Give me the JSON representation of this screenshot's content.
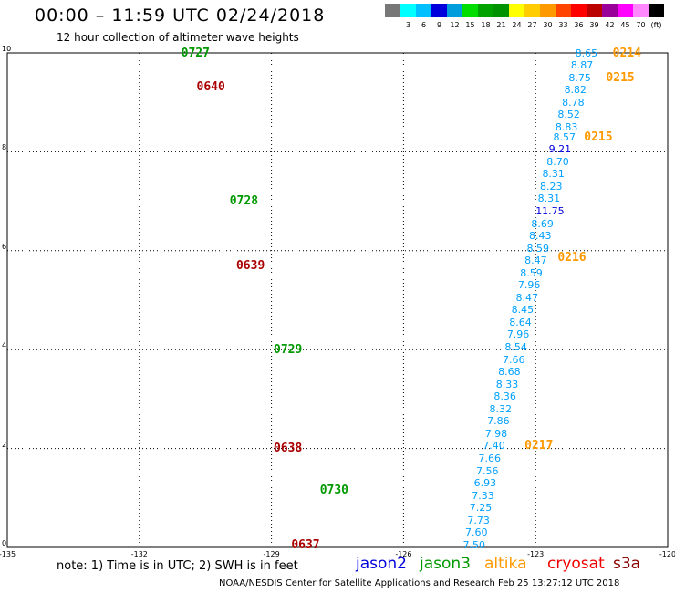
{
  "header": {
    "title": "00:00 – 11:59 UTC 02/24/2018",
    "subtitle": "12 hour collection of altimeter wave heights"
  },
  "legend": {
    "colors": [
      "#777777",
      "#00ffff",
      "#00c0ff",
      "#0000dd",
      "#009ddd",
      "#00dd00",
      "#00a200",
      "#009200",
      "#ffff00",
      "#ffcc00",
      "#ff9900",
      "#ff4400",
      "#ff0000",
      "#bb0000",
      "#990099",
      "#ff00ff",
      "#ff88ff",
      "#000000"
    ],
    "labels": [
      "3",
      "6",
      "9",
      "12",
      "15",
      "18",
      "21",
      "24",
      "27",
      "30",
      "33",
      "36",
      "39",
      "42",
      "45",
      "70",
      "(ft)"
    ]
  },
  "axes": {
    "x_ticks": [
      "-135",
      "-132",
      "-129",
      "-126",
      "-123",
      "-120"
    ],
    "x_values": [
      -135,
      -132,
      -129,
      -126,
      -123,
      -120
    ],
    "y_ticks": [
      "0",
      "2",
      "4",
      "6",
      "8",
      "10"
    ],
    "y_values": [
      0,
      2,
      4,
      6,
      8,
      10
    ],
    "grid": "dotted"
  },
  "map_data": {
    "type": "track-map",
    "tracks": [
      {
        "id": "right",
        "observations": [
          {
            "lon": -122.1,
            "lat": 9.99,
            "value": "8.65",
            "color": "#00a0ff"
          },
          {
            "lon": -122.2,
            "lat": 9.74,
            "value": "8.87",
            "color": "#00a0ff"
          },
          {
            "lon": -122.25,
            "lat": 9.49,
            "value": "8.75",
            "color": "#00a0ff"
          },
          {
            "lon": -122.35,
            "lat": 9.24,
            "value": "8.82",
            "color": "#00a0ff"
          },
          {
            "lon": -122.4,
            "lat": 8.99,
            "value": "8.78",
            "color": "#00a0ff"
          },
          {
            "lon": -122.5,
            "lat": 8.74,
            "value": "8.52",
            "color": "#00a0ff"
          },
          {
            "lon": -122.55,
            "lat": 8.49,
            "value": "8.83",
            "color": "#00a0ff"
          },
          {
            "lon": -122.6,
            "lat": 8.29,
            "value": "8.57",
            "color": "#00a0ff"
          },
          {
            "lon": -122.7,
            "lat": 8.04,
            "value": "9.21",
            "color": "#0000dd"
          },
          {
            "lon": -122.75,
            "lat": 7.79,
            "value": "8.70",
            "color": "#00a0ff"
          },
          {
            "lon": -122.85,
            "lat": 7.54,
            "value": "8.31",
            "color": "#00a0ff"
          },
          {
            "lon": -122.9,
            "lat": 7.29,
            "value": "8.23",
            "color": "#00a0ff"
          },
          {
            "lon": -122.95,
            "lat": 7.04,
            "value": "8.31",
            "color": "#00a0ff"
          },
          {
            "lon": -123.0,
            "lat": 6.79,
            "value": "11.75",
            "color": "#0000dd"
          },
          {
            "lon": -123.1,
            "lat": 6.54,
            "value": "8.69",
            "color": "#00a0ff"
          },
          {
            "lon": -123.15,
            "lat": 6.29,
            "value": "8.43",
            "color": "#00a0ff"
          },
          {
            "lon": -123.2,
            "lat": 6.04,
            "value": "8.59",
            "color": "#00a0ff"
          },
          {
            "lon": -123.25,
            "lat": 5.79,
            "value": "8.47",
            "color": "#00a0ff"
          },
          {
            "lon": -123.35,
            "lat": 5.54,
            "value": "8.59",
            "color": "#00a0ff"
          },
          {
            "lon": -123.4,
            "lat": 5.29,
            "value": "7.96",
            "color": "#00a0ff"
          },
          {
            "lon": -123.45,
            "lat": 5.04,
            "value": "8.47",
            "color": "#00a0ff"
          },
          {
            "lon": -123.55,
            "lat": 4.79,
            "value": "8.45",
            "color": "#00a0ff"
          },
          {
            "lon": -123.6,
            "lat": 4.54,
            "value": "8.64",
            "color": "#00a0ff"
          },
          {
            "lon": -123.65,
            "lat": 4.29,
            "value": "7.96",
            "color": "#00a0ff"
          },
          {
            "lon": -123.7,
            "lat": 4.04,
            "value": "8.54",
            "color": "#00a0ff"
          },
          {
            "lon": -123.75,
            "lat": 3.79,
            "value": "7.66",
            "color": "#00a0ff"
          },
          {
            "lon": -123.85,
            "lat": 3.54,
            "value": "8.68",
            "color": "#00a0ff"
          },
          {
            "lon": -123.9,
            "lat": 3.29,
            "value": "8.33",
            "color": "#00a0ff"
          },
          {
            "lon": -123.95,
            "lat": 3.04,
            "value": "8.36",
            "color": "#00a0ff"
          },
          {
            "lon": -124.05,
            "lat": 2.79,
            "value": "8.32",
            "color": "#00a0ff"
          },
          {
            "lon": -124.1,
            "lat": 2.54,
            "value": "7.86",
            "color": "#00a0ff"
          },
          {
            "lon": -124.15,
            "lat": 2.29,
            "value": "7.98",
            "color": "#00a0ff"
          },
          {
            "lon": -124.2,
            "lat": 2.04,
            "value": "7.40",
            "color": "#00a0ff"
          },
          {
            "lon": -124.3,
            "lat": 1.79,
            "value": "7.66",
            "color": "#00a0ff"
          },
          {
            "lon": -124.35,
            "lat": 1.54,
            "value": "7.56",
            "color": "#00a0ff"
          },
          {
            "lon": -124.4,
            "lat": 1.29,
            "value": "6.93",
            "color": "#00a0ff"
          },
          {
            "lon": -124.45,
            "lat": 1.04,
            "value": "7.33",
            "color": "#00a0ff"
          },
          {
            "lon": -124.5,
            "lat": 0.79,
            "value": "7.25",
            "color": "#00a0ff"
          },
          {
            "lon": -124.55,
            "lat": 0.54,
            "value": "7.73",
            "color": "#00a0ff"
          },
          {
            "lon": -124.6,
            "lat": 0.29,
            "value": "7.60",
            "color": "#00a0ff"
          },
          {
            "lon": -124.65,
            "lat": 0.04,
            "value": "7.50",
            "color": "#00a0ff"
          }
        ]
      }
    ],
    "pass_labels": [
      {
        "text": "0727",
        "lon": -131.05,
        "lat": 9.99,
        "color": "#009900"
      },
      {
        "text": "0640",
        "lon": -130.7,
        "lat": 9.29,
        "color": "#aa0000"
      },
      {
        "text": "0728",
        "lon": -129.95,
        "lat": 6.99,
        "color": "#009900"
      },
      {
        "text": "0639",
        "lon": -129.8,
        "lat": 5.69,
        "color": "#aa0000"
      },
      {
        "text": "0729",
        "lon": -128.95,
        "lat": 3.99,
        "color": "#009900"
      },
      {
        "text": "0638",
        "lon": -128.95,
        "lat": 1.99,
        "color": "#aa0000"
      },
      {
        "text": "0730",
        "lon": -127.9,
        "lat": 1.14,
        "color": "#009900"
      },
      {
        "text": "0637",
        "lon": -128.55,
        "lat": 0.04,
        "color": "#aa0000"
      },
      {
        "text": "0214",
        "lon": -121.25,
        "lat": 9.99,
        "color": "#ff9900"
      },
      {
        "text": "0215",
        "lon": -121.4,
        "lat": 9.49,
        "color": "#ff9900"
      },
      {
        "text": "0215",
        "lon": -121.9,
        "lat": 8.29,
        "color": "#ff9900"
      },
      {
        "text": "0216",
        "lon": -122.5,
        "lat": 5.84,
        "color": "#ff9900"
      },
      {
        "text": "0217",
        "lon": -123.25,
        "lat": 2.04,
        "color": "#ff9900"
      }
    ]
  },
  "footer": {
    "note": "note:  1) Time is in UTC;  2) SWH is in feet",
    "missions": [
      {
        "name": "jason2",
        "color": "#0000dd"
      },
      {
        "name": "jason3",
        "color": "#009900"
      },
      {
        "name": "altika",
        "color": "#ff9900"
      },
      {
        "name": "cryosat",
        "color": "#ee0000"
      },
      {
        "name": "s3a",
        "color": "#880000"
      }
    ],
    "credit": "NOAA/NESDIS Center for Satellite Applications and Research    Feb 25 13:27:12 UTC 2018"
  }
}
